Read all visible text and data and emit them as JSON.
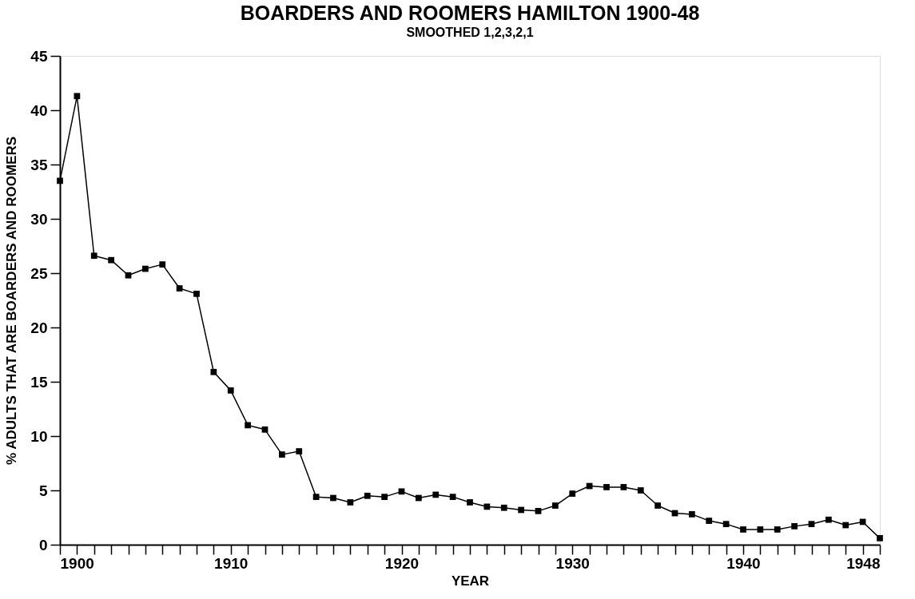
{
  "chart_data": {
    "type": "line",
    "title": "BOARDERS AND ROOMERS HAMILTON 1900-48",
    "subtitle": "SMOOTHED 1,2,3,2,1",
    "xlabel": "YEAR",
    "ylabel": "% ADULTS THAT ARE BOARDERS AND ROOMERS",
    "x": [
      1900,
      1901,
      1902,
      1903,
      1904,
      1905,
      1906,
      1907,
      1908,
      1909,
      1910,
      1911,
      1912,
      1913,
      1914,
      1915,
      1916,
      1917,
      1918,
      1919,
      1920,
      1921,
      1922,
      1923,
      1924,
      1925,
      1926,
      1927,
      1928,
      1929,
      1930,
      1931,
      1932,
      1933,
      1934,
      1935,
      1936,
      1937,
      1938,
      1939,
      1940,
      1941,
      1942,
      1943,
      1944,
      1945,
      1946,
      1947,
      1948
    ],
    "series": [
      {
        "color": "#000000",
        "values": [
          33.5,
          41.3,
          26.6,
          26.2,
          24.8,
          25.4,
          25.8,
          23.6,
          23.1,
          15.9,
          14.2,
          11.0,
          10.6,
          8.3,
          8.6,
          4.4,
          4.3,
          3.9,
          4.5,
          4.4,
          4.9,
          4.3,
          4.6,
          4.4,
          3.9,
          3.5,
          3.4,
          3.2,
          3.1,
          3.6,
          4.7,
          5.4,
          5.3,
          5.3,
          5.0,
          3.6,
          2.9,
          2.8,
          2.2,
          1.9,
          1.4,
          1.4,
          1.4,
          1.7,
          1.9,
          2.3,
          1.8,
          2.1,
          0.6
        ]
      }
    ],
    "xlim": [
      1900,
      1948
    ],
    "ylim": [
      0,
      45
    ],
    "xticks": [
      1900,
      {
        "value": 1901,
        "label": null
      },
      {
        "value": 1902,
        "label": null
      },
      {
        "value": 1903,
        "label": null
      },
      {
        "value": 1904,
        "label": null
      },
      {
        "value": 1905,
        "label": null
      },
      {
        "value": 1906,
        "label": null
      },
      {
        "value": 1907,
        "label": null
      },
      {
        "value": 1908,
        "label": null
      },
      {
        "value": 1909,
        "label": null
      },
      1910,
      {
        "value": 1911,
        "label": null
      },
      {
        "value": 1912,
        "label": null
      },
      {
        "value": 1913,
        "label": null
      },
      {
        "value": 1914,
        "label": null
      },
      {
        "value": 1915,
        "label": null
      },
      {
        "value": 1916,
        "label": null
      },
      {
        "value": 1917,
        "label": null
      },
      {
        "value": 1918,
        "label": null
      },
      {
        "value": 1919,
        "label": null
      },
      1920,
      {
        "value": 1921,
        "label": null
      },
      {
        "value": 1922,
        "label": null
      },
      {
        "value": 1923,
        "label": null
      },
      {
        "value": 1924,
        "label": null
      },
      {
        "value": 1925,
        "label": null
      },
      {
        "value": 1926,
        "label": null
      },
      {
        "value": 1927,
        "label": null
      },
      {
        "value": 1928,
        "label": null
      },
      {
        "value": 1929,
        "label": null
      },
      1930,
      {
        "value": 1931,
        "label": null
      },
      {
        "value": 1932,
        "label": null
      },
      {
        "value": 1933,
        "label": null
      },
      {
        "value": 1934,
        "label": null
      },
      {
        "value": 1935,
        "label": null
      },
      {
        "value": 1936,
        "label": null
      },
      {
        "value": 1937,
        "label": null
      },
      {
        "value": 1938,
        "label": null
      },
      {
        "value": 1939,
        "label": null
      },
      1940,
      {
        "value": 1941,
        "label": null
      },
      {
        "value": 1942,
        "label": null
      },
      {
        "value": 1943,
        "label": null
      },
      {
        "value": 1944,
        "label": null
      },
      {
        "value": 1945,
        "label": null
      },
      {
        "value": 1946,
        "label": null
      },
      {
        "value": 1947,
        "label": null
      },
      1948
    ],
    "yticks": [
      0,
      5,
      10,
      15,
      20,
      25,
      30,
      35,
      40,
      45
    ],
    "grid": false,
    "legend": false,
    "marker": "square",
    "line_style": "solid"
  }
}
